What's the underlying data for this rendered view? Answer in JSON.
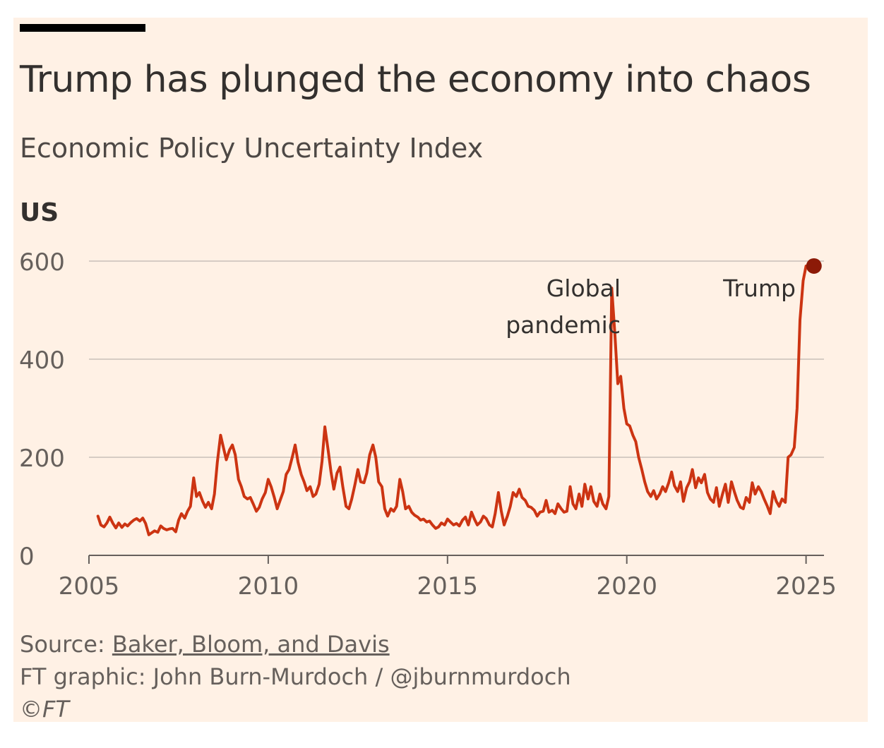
{
  "header": {
    "title": "Trump has plunged the economy into chaos",
    "subtitle": "Economic Policy Uncertainty Index",
    "panel_label": "US"
  },
  "colors": {
    "background": "#fff1e5",
    "line": "#cc3412",
    "highlight_dot": "#8c1a07",
    "gridline": "#d6ccc4",
    "text": "#33302e"
  },
  "chart_data": {
    "type": "line",
    "title": "Economic Policy Uncertainty Index",
    "xlabel": "",
    "ylabel": "",
    "xlim": [
      2005,
      2025.5
    ],
    "ylim": [
      0,
      600
    ],
    "x_ticks": [
      2005,
      2010,
      2015,
      2020,
      2025
    ],
    "y_ticks": [
      0,
      200,
      400,
      600
    ],
    "grid": true,
    "annotations": [
      {
        "text_lines": [
          "Global",
          "pandemic"
        ],
        "x": 2020.2,
        "y": 550
      },
      {
        "text_lines": [
          "Trump"
        ],
        "x": 2025.2,
        "y": 590
      }
    ],
    "highlight_point": {
      "x": 2025.22,
      "y": 590
    },
    "series": [
      {
        "values": [
          [
            2005.25,
            80
          ],
          [
            2005.33,
            62
          ],
          [
            2005.42,
            58
          ],
          [
            2005.5,
            66
          ],
          [
            2005.58,
            78
          ],
          [
            2005.67,
            65
          ],
          [
            2005.75,
            56
          ],
          [
            2005.83,
            66
          ],
          [
            2005.92,
            57
          ],
          [
            2006.0,
            64
          ],
          [
            2006.08,
            60
          ],
          [
            2006.17,
            67
          ],
          [
            2006.25,
            72
          ],
          [
            2006.33,
            75
          ],
          [
            2006.42,
            70
          ],
          [
            2006.5,
            76
          ],
          [
            2006.58,
            65
          ],
          [
            2006.67,
            42
          ],
          [
            2006.75,
            46
          ],
          [
            2006.83,
            50
          ],
          [
            2006.92,
            47
          ],
          [
            2007.0,
            60
          ],
          [
            2007.08,
            55
          ],
          [
            2007.17,
            52
          ],
          [
            2007.25,
            54
          ],
          [
            2007.33,
            55
          ],
          [
            2007.42,
            48
          ],
          [
            2007.5,
            72
          ],
          [
            2007.58,
            85
          ],
          [
            2007.67,
            76
          ],
          [
            2007.75,
            90
          ],
          [
            2007.83,
            100
          ],
          [
            2007.92,
            158
          ],
          [
            2008.0,
            120
          ],
          [
            2008.08,
            128
          ],
          [
            2008.17,
            110
          ],
          [
            2008.25,
            98
          ],
          [
            2008.33,
            108
          ],
          [
            2008.42,
            95
          ],
          [
            2008.5,
            125
          ],
          [
            2008.58,
            190
          ],
          [
            2008.67,
            245
          ],
          [
            2008.75,
            220
          ],
          [
            2008.83,
            195
          ],
          [
            2008.92,
            215
          ],
          [
            2009.0,
            225
          ],
          [
            2009.08,
            205
          ],
          [
            2009.17,
            155
          ],
          [
            2009.25,
            140
          ],
          [
            2009.33,
            120
          ],
          [
            2009.42,
            115
          ],
          [
            2009.5,
            118
          ],
          [
            2009.58,
            105
          ],
          [
            2009.67,
            90
          ],
          [
            2009.75,
            98
          ],
          [
            2009.83,
            115
          ],
          [
            2009.92,
            128
          ],
          [
            2010.0,
            155
          ],
          [
            2010.08,
            140
          ],
          [
            2010.17,
            118
          ],
          [
            2010.25,
            95
          ],
          [
            2010.33,
            112
          ],
          [
            2010.42,
            130
          ],
          [
            2010.5,
            165
          ],
          [
            2010.58,
            175
          ],
          [
            2010.67,
            200
          ],
          [
            2010.75,
            225
          ],
          [
            2010.83,
            190
          ],
          [
            2010.92,
            165
          ],
          [
            2011.0,
            150
          ],
          [
            2011.08,
            132
          ],
          [
            2011.17,
            140
          ],
          [
            2011.25,
            120
          ],
          [
            2011.33,
            125
          ],
          [
            2011.42,
            145
          ],
          [
            2011.5,
            192
          ],
          [
            2011.58,
            262
          ],
          [
            2011.67,
            215
          ],
          [
            2011.75,
            170
          ],
          [
            2011.83,
            135
          ],
          [
            2011.92,
            168
          ],
          [
            2012.0,
            180
          ],
          [
            2012.08,
            140
          ],
          [
            2012.17,
            100
          ],
          [
            2012.25,
            95
          ],
          [
            2012.33,
            115
          ],
          [
            2012.42,
            145
          ],
          [
            2012.5,
            175
          ],
          [
            2012.58,
            150
          ],
          [
            2012.67,
            148
          ],
          [
            2012.75,
            168
          ],
          [
            2012.83,
            205
          ],
          [
            2012.92,
            225
          ],
          [
            2013.0,
            200
          ],
          [
            2013.08,
            150
          ],
          [
            2013.17,
            140
          ],
          [
            2013.25,
            95
          ],
          [
            2013.33,
            80
          ],
          [
            2013.42,
            95
          ],
          [
            2013.5,
            90
          ],
          [
            2013.58,
            100
          ],
          [
            2013.67,
            155
          ],
          [
            2013.75,
            130
          ],
          [
            2013.83,
            95
          ],
          [
            2013.92,
            100
          ],
          [
            2014.0,
            88
          ],
          [
            2014.08,
            82
          ],
          [
            2014.17,
            78
          ],
          [
            2014.25,
            72
          ],
          [
            2014.33,
            74
          ],
          [
            2014.42,
            68
          ],
          [
            2014.5,
            70
          ],
          [
            2014.58,
            62
          ],
          [
            2014.67,
            55
          ],
          [
            2014.75,
            58
          ],
          [
            2014.83,
            66
          ],
          [
            2014.92,
            62
          ],
          [
            2015.0,
            74
          ],
          [
            2015.08,
            68
          ],
          [
            2015.17,
            62
          ],
          [
            2015.25,
            65
          ],
          [
            2015.33,
            60
          ],
          [
            2015.42,
            72
          ],
          [
            2015.5,
            78
          ],
          [
            2015.58,
            62
          ],
          [
            2015.67,
            88
          ],
          [
            2015.75,
            74
          ],
          [
            2015.83,
            62
          ],
          [
            2015.92,
            68
          ],
          [
            2016.0,
            80
          ],
          [
            2016.08,
            75
          ],
          [
            2016.17,
            62
          ],
          [
            2016.25,
            58
          ],
          [
            2016.33,
            85
          ],
          [
            2016.42,
            128
          ],
          [
            2016.5,
            90
          ],
          [
            2016.58,
            62
          ],
          [
            2016.67,
            80
          ],
          [
            2016.75,
            100
          ],
          [
            2016.83,
            128
          ],
          [
            2016.92,
            120
          ],
          [
            2017.0,
            135
          ],
          [
            2017.08,
            118
          ],
          [
            2017.17,
            112
          ],
          [
            2017.25,
            100
          ],
          [
            2017.33,
            98
          ],
          [
            2017.42,
            92
          ],
          [
            2017.5,
            80
          ],
          [
            2017.58,
            88
          ],
          [
            2017.67,
            90
          ],
          [
            2017.75,
            112
          ],
          [
            2017.83,
            88
          ],
          [
            2017.92,
            92
          ],
          [
            2018.0,
            85
          ],
          [
            2018.08,
            105
          ],
          [
            2018.17,
            95
          ],
          [
            2018.25,
            88
          ],
          [
            2018.33,
            90
          ],
          [
            2018.42,
            140
          ],
          [
            2018.5,
            105
          ],
          [
            2018.58,
            95
          ],
          [
            2018.67,
            125
          ],
          [
            2018.75,
            100
          ],
          [
            2018.83,
            145
          ],
          [
            2018.92,
            115
          ],
          [
            2019.0,
            140
          ],
          [
            2019.08,
            110
          ],
          [
            2019.17,
            100
          ],
          [
            2019.25,
            125
          ],
          [
            2019.33,
            105
          ],
          [
            2019.42,
            95
          ],
          [
            2019.5,
            120
          ],
          [
            2019.58,
            545
          ],
          [
            2019.67,
            450
          ],
          [
            2019.75,
            350
          ],
          [
            2019.83,
            365
          ],
          [
            2019.92,
            300
          ],
          [
            2020.0,
            268
          ],
          [
            2020.08,
            264
          ],
          [
            2020.17,
            245
          ],
          [
            2020.25,
            232
          ],
          [
            2020.33,
            200
          ],
          [
            2020.42,
            175
          ],
          [
            2020.5,
            150
          ],
          [
            2020.58,
            130
          ],
          [
            2020.67,
            120
          ],
          [
            2020.75,
            132
          ],
          [
            2020.83,
            115
          ],
          [
            2020.92,
            125
          ],
          [
            2021.0,
            140
          ],
          [
            2021.08,
            130
          ],
          [
            2021.17,
            148
          ],
          [
            2021.25,
            170
          ],
          [
            2021.33,
            142
          ],
          [
            2021.42,
            130
          ],
          [
            2021.5,
            150
          ],
          [
            2021.58,
            110
          ],
          [
            2021.67,
            138
          ],
          [
            2021.75,
            150
          ],
          [
            2021.83,
            175
          ],
          [
            2021.92,
            138
          ],
          [
            2022.0,
            158
          ],
          [
            2022.08,
            148
          ],
          [
            2022.17,
            165
          ],
          [
            2022.25,
            128
          ],
          [
            2022.33,
            115
          ],
          [
            2022.42,
            108
          ],
          [
            2022.5,
            138
          ],
          [
            2022.58,
            100
          ],
          [
            2022.67,
            125
          ],
          [
            2022.75,
            145
          ],
          [
            2022.83,
            108
          ],
          [
            2022.92,
            150
          ],
          [
            2023.0,
            130
          ],
          [
            2023.08,
            112
          ],
          [
            2023.17,
            98
          ],
          [
            2023.25,
            95
          ],
          [
            2023.33,
            118
          ],
          [
            2023.42,
            108
          ],
          [
            2023.5,
            148
          ],
          [
            2023.58,
            125
          ],
          [
            2023.67,
            140
          ],
          [
            2023.75,
            130
          ],
          [
            2023.83,
            115
          ],
          [
            2023.92,
            100
          ],
          [
            2024.0,
            85
          ],
          [
            2024.08,
            130
          ],
          [
            2024.17,
            110
          ],
          [
            2024.25,
            100
          ],
          [
            2024.33,
            115
          ],
          [
            2024.42,
            108
          ],
          [
            2024.5,
            200
          ],
          [
            2024.58,
            205
          ],
          [
            2024.67,
            220
          ],
          [
            2024.75,
            300
          ],
          [
            2024.83,
            480
          ],
          [
            2024.92,
            560
          ],
          [
            2025.0,
            590
          ]
        ]
      }
    ]
  },
  "footer": {
    "source_prefix": "Source: ",
    "source_link": "Baker, Bloom, and Davis",
    "credit": "FT graphic: John Burn-Murdoch / @jburnmurdoch",
    "copyright": "©FT"
  }
}
